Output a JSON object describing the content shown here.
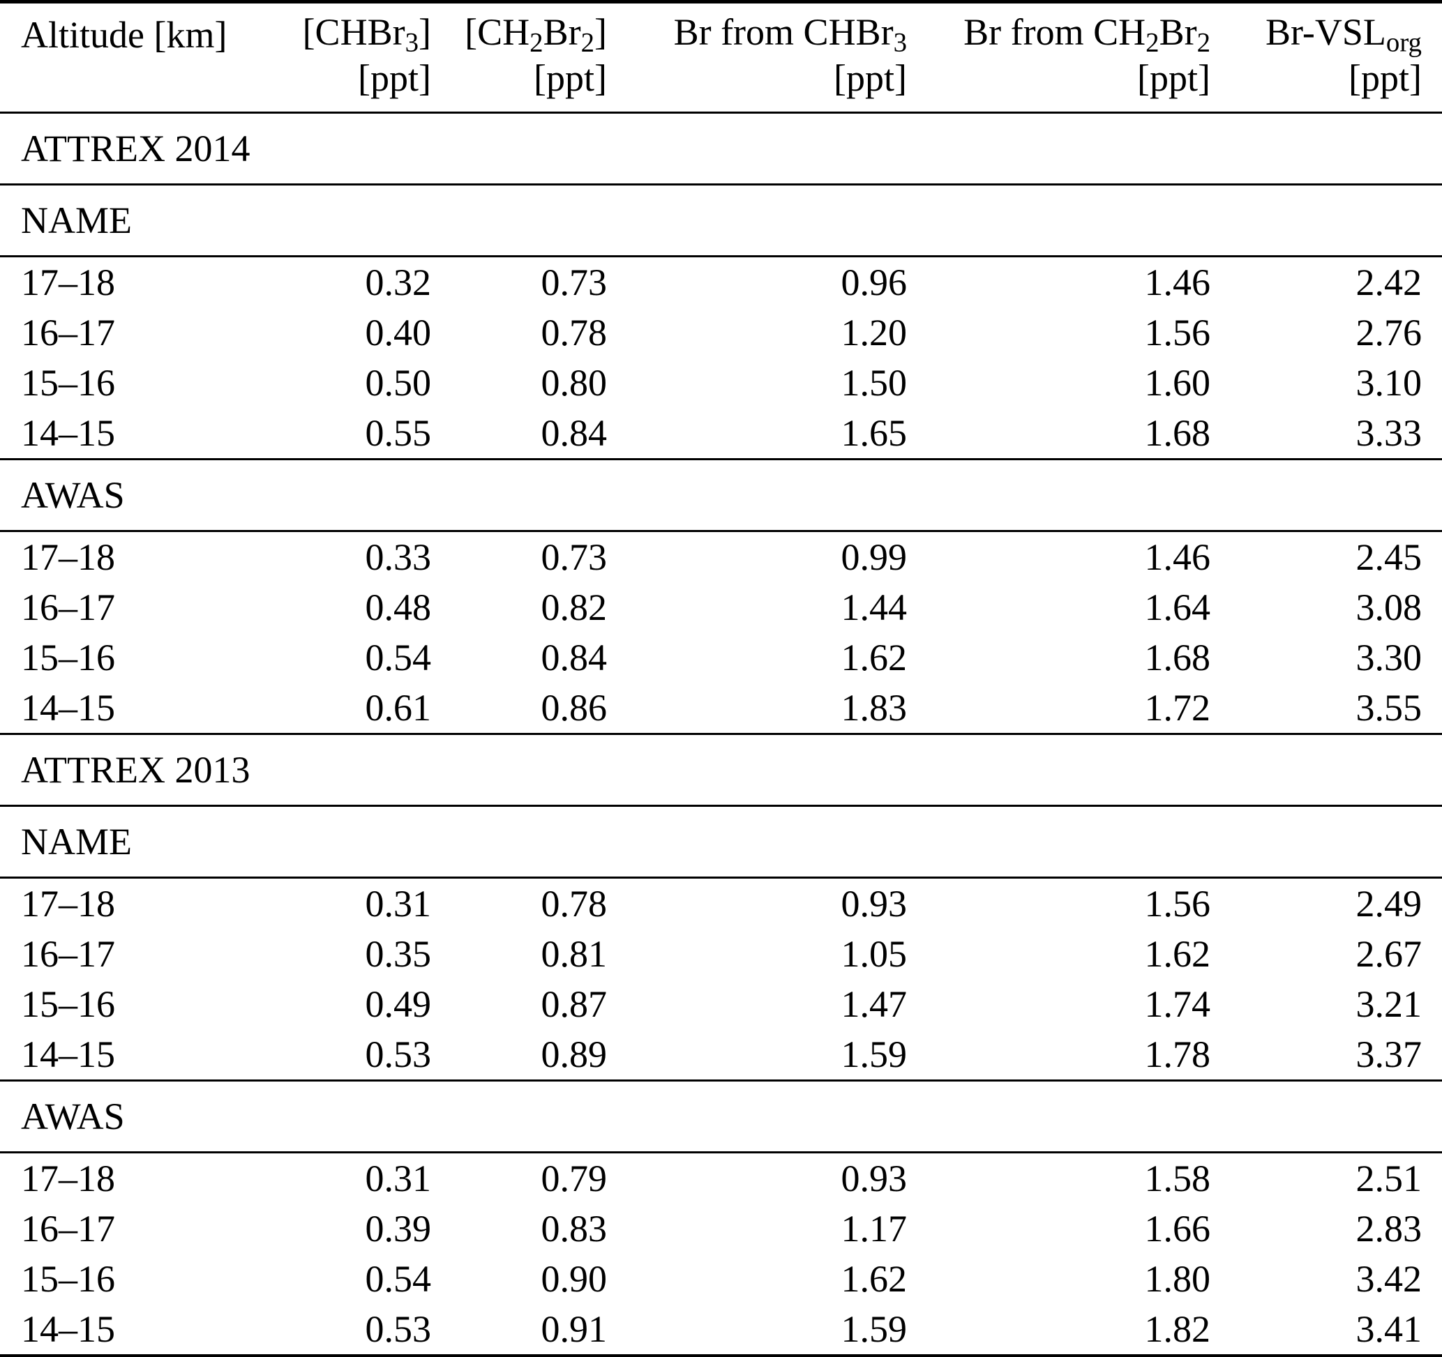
{
  "table": {
    "header": {
      "columns": [
        {
          "id": "altitude",
          "line1": [
            {
              "t": "Altitude [km]"
            }
          ],
          "unit": ""
        },
        {
          "id": "chbr3",
          "line1": [
            {
              "t": "[CHBr"
            },
            {
              "t": "3",
              "sub": true
            },
            {
              "t": "]"
            }
          ],
          "unit": "[ppt]"
        },
        {
          "id": "ch2br2",
          "line1": [
            {
              "t": "[CH"
            },
            {
              "t": "2",
              "sub": true
            },
            {
              "t": "Br"
            },
            {
              "t": "2",
              "sub": true
            },
            {
              "t": "]"
            }
          ],
          "unit": "[ppt]"
        },
        {
          "id": "br-from-chbr3",
          "line1": [
            {
              "t": "Br from CHBr"
            },
            {
              "t": "3",
              "sub": true
            }
          ],
          "unit": "[ppt]"
        },
        {
          "id": "br-from-ch2br2",
          "line1": [
            {
              "t": "Br from CH"
            },
            {
              "t": "2",
              "sub": true
            },
            {
              "t": "Br"
            },
            {
              "t": "2",
              "sub": true
            }
          ],
          "unit": "[ppt]"
        },
        {
          "id": "br-vsl-org",
          "line1": [
            {
              "t": "Br-VSL"
            },
            {
              "t": "org",
              "sub": true
            }
          ],
          "unit": "[ppt]"
        }
      ]
    },
    "groups": [
      {
        "label": "ATTREX 2014",
        "subsections": [
          {
            "label": "NAME",
            "rows": [
              {
                "altitude": "17–18",
                "values": [
                  "0.32",
                  "0.73",
                  "0.96",
                  "1.46",
                  "2.42"
                ]
              },
              {
                "altitude": "16–17",
                "values": [
                  "0.40",
                  "0.78",
                  "1.20",
                  "1.56",
                  "2.76"
                ]
              },
              {
                "altitude": "15–16",
                "values": [
                  "0.50",
                  "0.80",
                  "1.50",
                  "1.60",
                  "3.10"
                ]
              },
              {
                "altitude": "14–15",
                "values": [
                  "0.55",
                  "0.84",
                  "1.65",
                  "1.68",
                  "3.33"
                ]
              }
            ]
          },
          {
            "label": "AWAS",
            "rows": [
              {
                "altitude": "17–18",
                "values": [
                  "0.33",
                  "0.73",
                  "0.99",
                  "1.46",
                  "2.45"
                ]
              },
              {
                "altitude": "16–17",
                "values": [
                  "0.48",
                  "0.82",
                  "1.44",
                  "1.64",
                  "3.08"
                ]
              },
              {
                "altitude": "15–16",
                "values": [
                  "0.54",
                  "0.84",
                  "1.62",
                  "1.68",
                  "3.30"
                ]
              },
              {
                "altitude": "14–15",
                "values": [
                  "0.61",
                  "0.86",
                  "1.83",
                  "1.72",
                  "3.55"
                ]
              }
            ]
          }
        ]
      },
      {
        "label": "ATTREX 2013",
        "subsections": [
          {
            "label": "NAME",
            "rows": [
              {
                "altitude": "17–18",
                "values": [
                  "0.31",
                  "0.78",
                  "0.93",
                  "1.56",
                  "2.49"
                ]
              },
              {
                "altitude": "16–17",
                "values": [
                  "0.35",
                  "0.81",
                  "1.05",
                  "1.62",
                  "2.67"
                ]
              },
              {
                "altitude": "15–16",
                "values": [
                  "0.49",
                  "0.87",
                  "1.47",
                  "1.74",
                  "3.21"
                ]
              },
              {
                "altitude": "14–15",
                "values": [
                  "0.53",
                  "0.89",
                  "1.59",
                  "1.78",
                  "3.37"
                ]
              }
            ]
          },
          {
            "label": "AWAS",
            "rows": [
              {
                "altitude": "17–18",
                "values": [
                  "0.31",
                  "0.79",
                  "0.93",
                  "1.58",
                  "2.51"
                ]
              },
              {
                "altitude": "16–17",
                "values": [
                  "0.39",
                  "0.83",
                  "1.17",
                  "1.66",
                  "2.83"
                ]
              },
              {
                "altitude": "15–16",
                "values": [
                  "0.54",
                  "0.90",
                  "1.62",
                  "1.80",
                  "3.42"
                ]
              },
              {
                "altitude": "14–15",
                "values": [
                  "0.53",
                  "0.91",
                  "1.59",
                  "1.82",
                  "3.41"
                ]
              }
            ]
          }
        ]
      }
    ]
  }
}
